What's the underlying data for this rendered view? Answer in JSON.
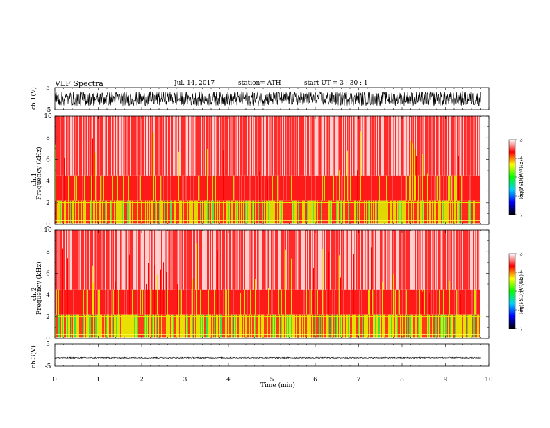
{
  "header": {
    "title": "VLF  Spectra",
    "date": "Jul.  14, 2017",
    "station": "station= ATH",
    "start": "start  UT  =    3  : 30 : 1"
  },
  "colors": {
    "waveform": "#000000",
    "axis": "#000000",
    "colormap": [
      "#000000",
      "#0000ff",
      "#00d0ff",
      "#00ff00",
      "#ffff00",
      "#ff0000",
      "#ffffff"
    ]
  },
  "chart_data": [
    {
      "type": "line",
      "name": "ch1-waveform",
      "ylabel": "ch.1(V)",
      "ylim": [
        -5,
        5
      ],
      "yticklabels": [
        "5",
        "-5"
      ],
      "xlim": [
        0,
        10
      ],
      "description_values": {
        "amplitude_range": [
          -3,
          3
        ],
        "duration_min": 9.8
      }
    },
    {
      "type": "heatmap",
      "name": "ch1-spectrogram",
      "ylabel": "ch.1\nFrequency  (kHz)",
      "ylim": [
        0,
        10
      ],
      "yticks": [
        0,
        2,
        4,
        6,
        8,
        10
      ],
      "xlim": [
        0,
        10
      ],
      "data_end_min": 9.8,
      "colorbar": {
        "label": "log(PSD)(V²/Hz)",
        "range": [
          -7,
          -3
        ],
        "ticks": [
          "-3",
          "-4",
          "-5",
          "-6",
          "-7"
        ]
      }
    },
    {
      "type": "heatmap",
      "name": "ch2-spectrogram",
      "ylabel": "ch.2\nFrequency  (kHz)",
      "ylim": [
        0,
        10
      ],
      "yticks": [
        0,
        2,
        4,
        6,
        8,
        10
      ],
      "xlim": [
        0,
        10
      ],
      "data_end_min": 9.8,
      "colorbar": {
        "label": "log(PSD)(V²/Hz)",
        "range": [
          -7,
          -3
        ],
        "ticks": [
          "-3",
          "-4",
          "-5",
          "-6",
          "-7"
        ]
      }
    },
    {
      "type": "line",
      "name": "ch3-waveform",
      "ylabel": "ch.3(V)",
      "ylim": [
        -5,
        5
      ],
      "yticklabels": [
        "5",
        "-5"
      ],
      "xlim": [
        0,
        10
      ],
      "xticks": [
        0,
        1,
        2,
        3,
        4,
        5,
        6,
        7,
        8,
        9,
        10
      ],
      "xlabel": "Time  (min)",
      "description_values": {
        "baseline": -1,
        "duration_min": 9.8
      }
    }
  ],
  "labels": {
    "ch1_v": "ch.1(V)",
    "ch1_freq_a": "ch.1",
    "ch1_freq_b": "Frequency  (kHz)",
    "ch2_freq_a": "ch.2",
    "ch2_freq_b": "Frequency  (kHz)",
    "ch3_v": "ch.3(V)",
    "xlabel": "Time  (min)",
    "cbar_label": "log(PSD)(V²/Hz)"
  }
}
